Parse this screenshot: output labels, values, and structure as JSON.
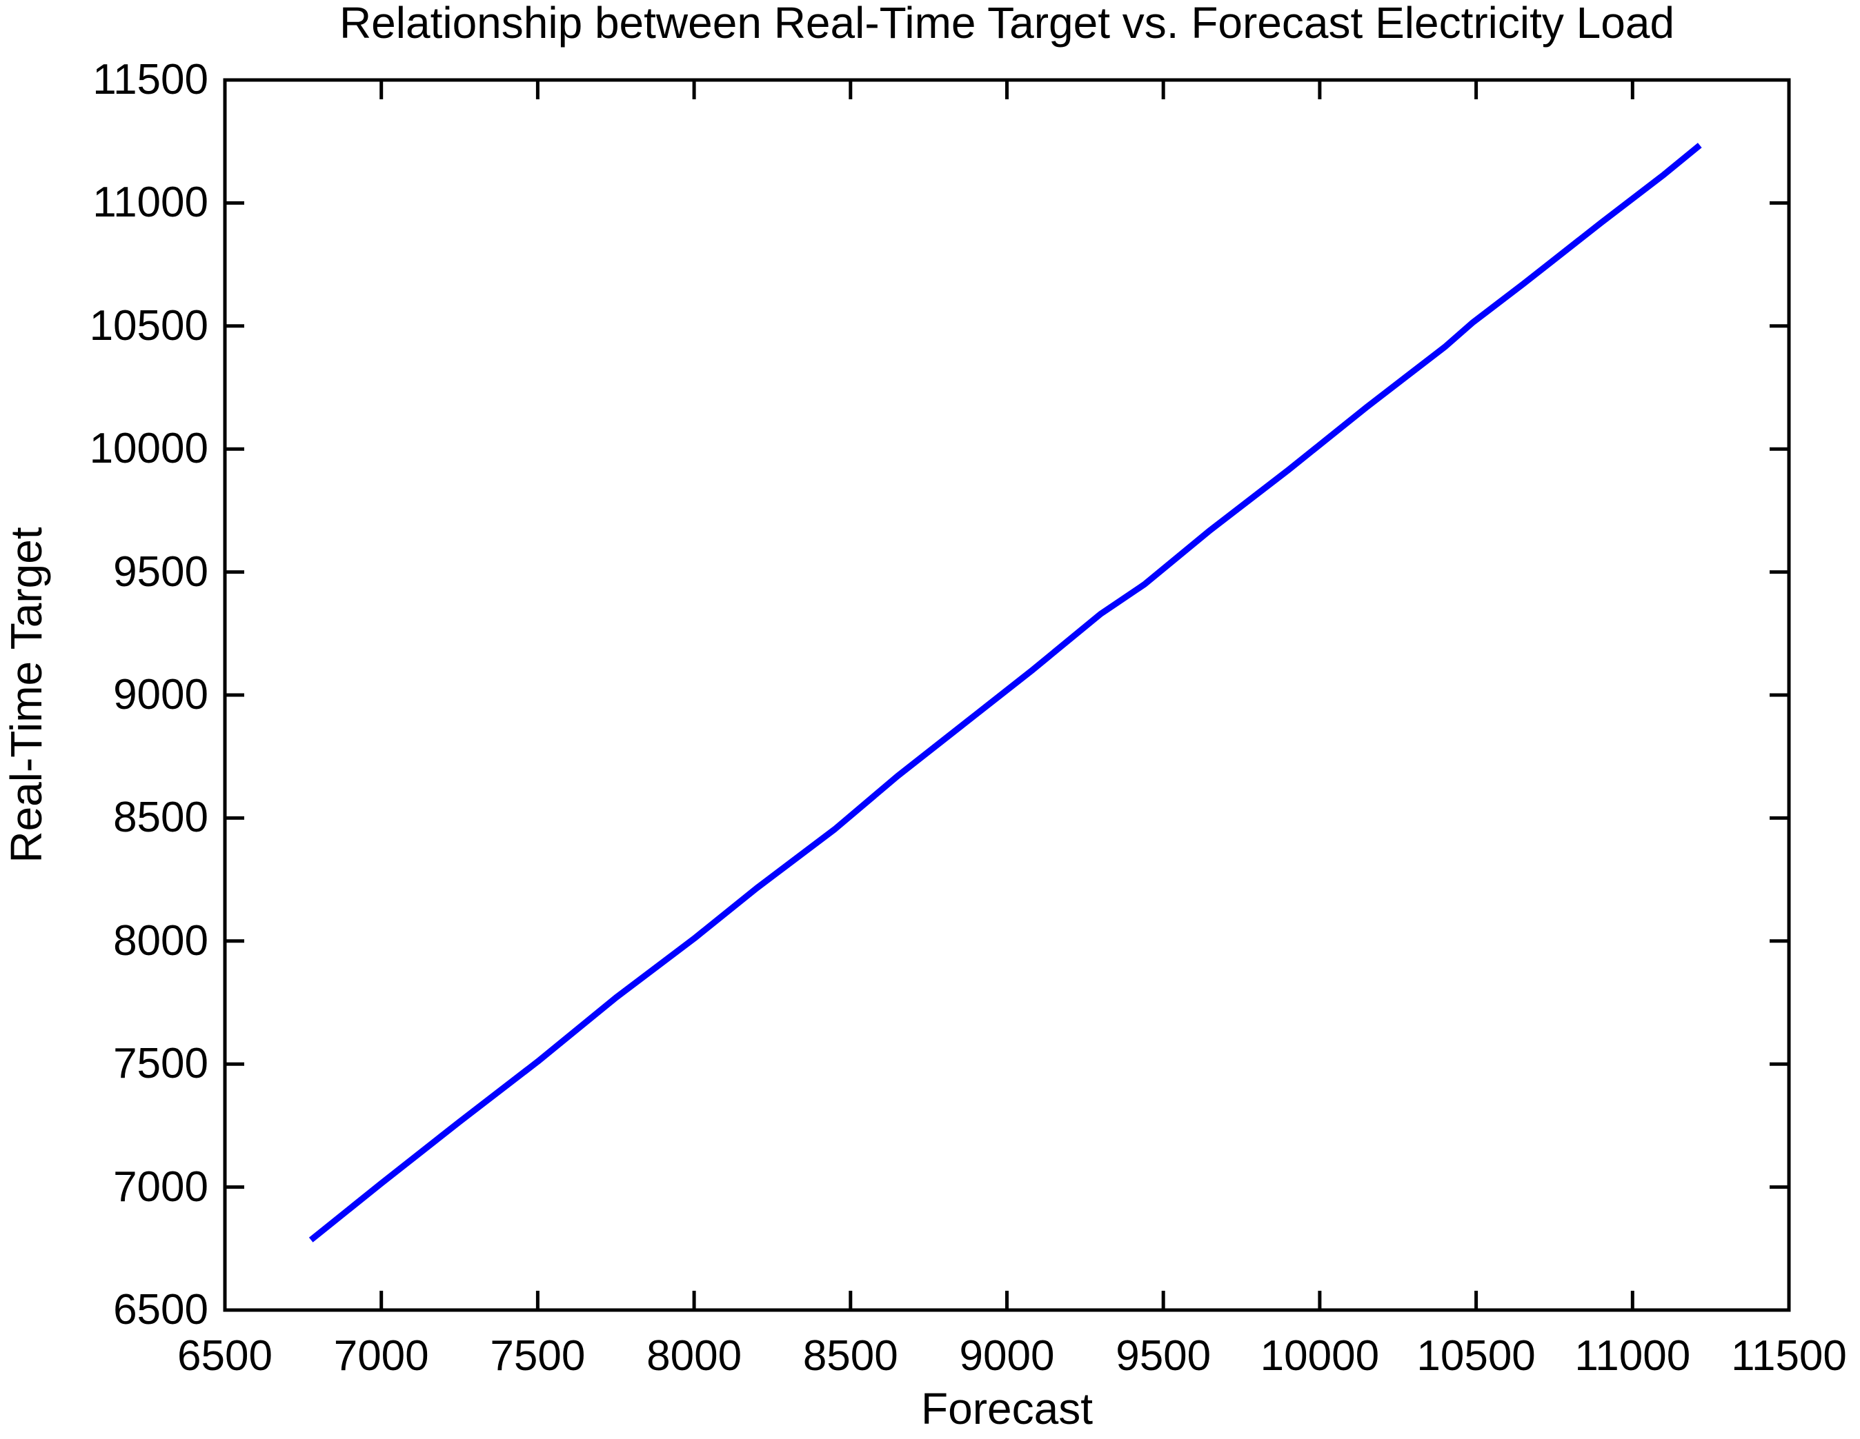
{
  "chart_data": {
    "type": "line",
    "title": "Relationship between Real-Time Target vs. Forecast Electricity Load",
    "xlabel": "Forecast",
    "ylabel": "Real-Time Target",
    "xlim": [
      6500,
      11500
    ],
    "ylim": [
      6500,
      11500
    ],
    "x_ticks": [
      6500,
      7000,
      7500,
      8000,
      8500,
      9000,
      9500,
      10000,
      10500,
      11000,
      11500
    ],
    "y_ticks": [
      6500,
      7000,
      7500,
      8000,
      8500,
      9000,
      9500,
      10000,
      10500,
      11000,
      11500
    ],
    "grid": false,
    "legend": "none",
    "line_color": "#0000ff",
    "axis_color": "#000000",
    "background_color": "#ffffff",
    "series": [
      {
        "name": "Real-Time Target vs Forecast",
        "x": [
          6775,
          7000,
          7250,
          7500,
          7750,
          8000,
          8200,
          8450,
          8650,
          8900,
          9080,
          9300,
          9440,
          9650,
          9900,
          10150,
          10400,
          10490,
          10650,
          10900,
          11100,
          11215
        ],
        "y": [
          6785,
          7015,
          7265,
          7510,
          7770,
          8010,
          8215,
          8455,
          8670,
          8920,
          9100,
          9330,
          9450,
          9670,
          9915,
          10170,
          10415,
          10515,
          10670,
          10920,
          11115,
          11235
        ]
      }
    ]
  }
}
